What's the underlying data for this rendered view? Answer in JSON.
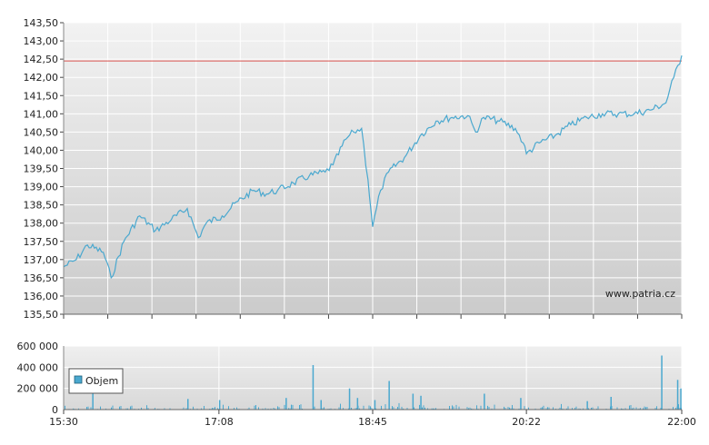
{
  "chart_data": [
    {
      "type": "line",
      "watermark": "www.patria.cz",
      "ylim": [
        135.5,
        143.5
      ],
      "y_ticks": [
        "143,50",
        "143,00",
        "142,50",
        "142,00",
        "141,50",
        "141,00",
        "140,50",
        "140,00",
        "139,50",
        "139,00",
        "138,50",
        "138,00",
        "137,50",
        "137,00",
        "136,50",
        "136,00",
        "135,50"
      ],
      "y_tick_values": [
        143.5,
        143.0,
        142.5,
        142.0,
        141.5,
        141.0,
        140.5,
        140.0,
        139.5,
        139.0,
        138.5,
        138.0,
        137.5,
        137.0,
        136.5,
        136.0,
        135.5
      ],
      "reference_line": {
        "value": 142.45,
        "color": "#d9534f"
      },
      "line_color": "#4aa8cf",
      "series": [
        {
          "x": [
            "15:30",
            "15:38",
            "15:45",
            "15:55",
            "16:00",
            "16:08",
            "16:18",
            "16:28",
            "16:38",
            "16:48",
            "16:55",
            "17:00",
            "17:10",
            "17:20",
            "17:30",
            "17:38",
            "17:45",
            "17:55",
            "18:05",
            "18:15",
            "18:20",
            "18:28",
            "18:33",
            "18:38",
            "18:42",
            "18:45",
            "18:50",
            "18:55",
            "19:05",
            "19:15",
            "19:25",
            "19:35",
            "19:45",
            "19:50",
            "19:55",
            "20:05",
            "20:15",
            "20:20",
            "20:22",
            "20:30",
            "20:40",
            "20:50",
            "21:00",
            "21:10",
            "21:20",
            "21:30",
            "21:40",
            "21:50",
            "21:55",
            "22:00"
          ],
          "y": [
            136.8,
            137.0,
            137.4,
            137.2,
            136.5,
            137.5,
            138.2,
            137.8,
            138.1,
            138.4,
            137.6,
            138.0,
            138.2,
            138.6,
            138.9,
            138.8,
            138.9,
            139.1,
            139.3,
            139.4,
            139.6,
            140.3,
            140.5,
            140.6,
            139.2,
            137.9,
            138.9,
            139.4,
            139.8,
            140.4,
            140.8,
            140.9,
            140.95,
            140.5,
            140.9,
            140.8,
            140.6,
            140.2,
            139.9,
            140.2,
            140.4,
            140.7,
            140.9,
            141.0,
            141.0,
            141.0,
            141.1,
            141.3,
            142.0,
            142.6
          ]
        }
      ]
    },
    {
      "type": "bar",
      "legend": "Objem",
      "ylim": [
        0,
        600000
      ],
      "y_ticks": [
        "600 000",
        "400 000",
        "200 000",
        "0"
      ],
      "y_tick_values": [
        600000,
        400000,
        200000,
        0
      ],
      "x_ticks": [
        "15:30",
        "17:08",
        "18:45",
        "20:22",
        "22:00"
      ],
      "bar_color": "#4aa8cf",
      "spikes": [
        {
          "x": "15:48",
          "value": 150000
        },
        {
          "x": "16:48",
          "value": 100000
        },
        {
          "x": "17:08",
          "value": 90000
        },
        {
          "x": "17:50",
          "value": 110000
        },
        {
          "x": "18:07",
          "value": 420000
        },
        {
          "x": "18:12",
          "value": 90000
        },
        {
          "x": "18:30",
          "value": 200000
        },
        {
          "x": "18:35",
          "value": 110000
        },
        {
          "x": "18:46",
          "value": 90000
        },
        {
          "x": "18:55",
          "value": 270000
        },
        {
          "x": "19:10",
          "value": 150000
        },
        {
          "x": "19:15",
          "value": 130000
        },
        {
          "x": "19:55",
          "value": 150000
        },
        {
          "x": "20:18",
          "value": 110000
        },
        {
          "x": "21:00",
          "value": 80000
        },
        {
          "x": "21:15",
          "value": 120000
        },
        {
          "x": "21:47",
          "value": 510000
        },
        {
          "x": "21:57",
          "value": 280000
        },
        {
          "x": "21:59",
          "value": 200000
        }
      ]
    }
  ]
}
